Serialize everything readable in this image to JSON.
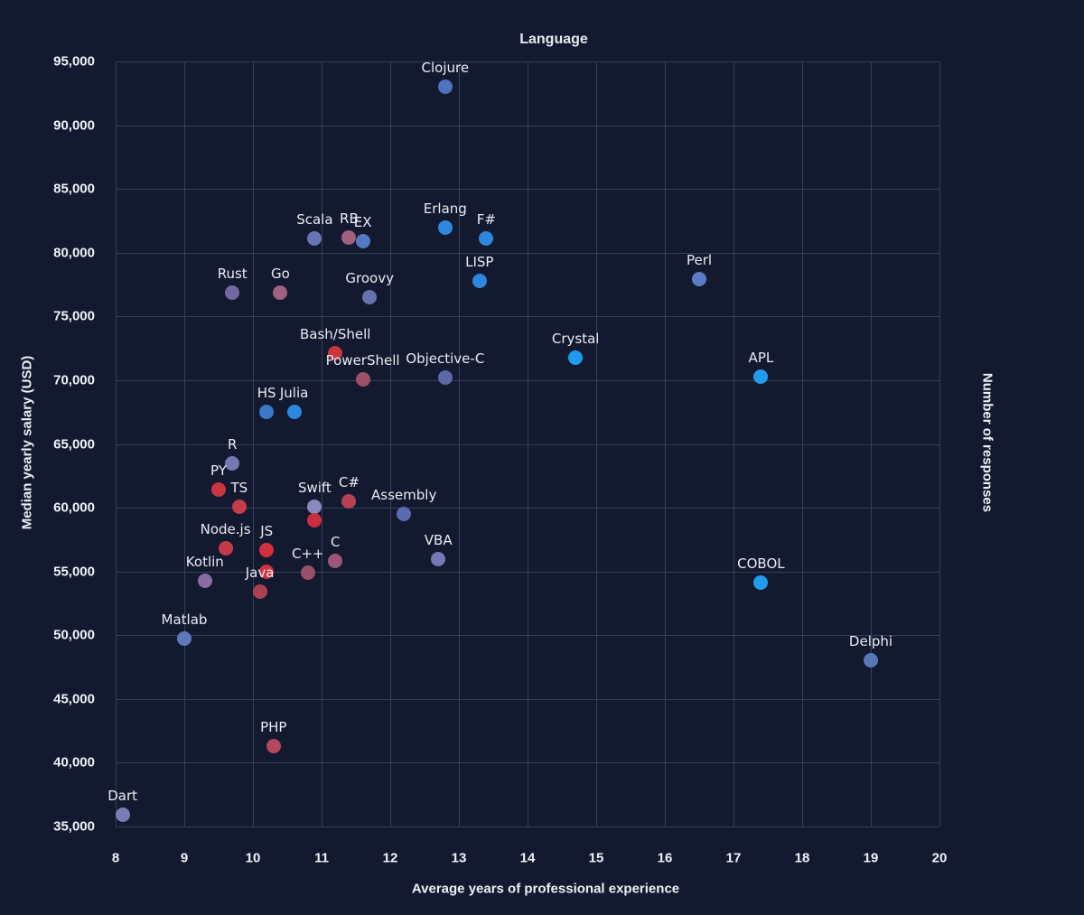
{
  "title": "Language",
  "colors": {
    "background": "#131a30",
    "grid": "#343d5b",
    "text": "#eef0f6"
  },
  "chart_data": {
    "type": "scatter",
    "title": "Language",
    "xlabel": "Average years of professional experience",
    "ylabel": "Median yearly salary (USD)",
    "right_label": "Number of responses",
    "xlim": [
      8,
      20
    ],
    "ylim": [
      35000,
      95000
    ],
    "x_ticks": [
      8,
      9,
      10,
      11,
      12,
      13,
      14,
      15,
      16,
      17,
      18,
      19,
      20
    ],
    "y_ticks": [
      35000,
      40000,
      45000,
      50000,
      55000,
      60000,
      65000,
      70000,
      75000,
      80000,
      85000,
      90000,
      95000
    ],
    "grid": true,
    "color_meaning": "number of responses (red = many, blue = few)",
    "points": [
      {
        "label": "Clojure",
        "x": 12.8,
        "y": 93000,
        "color": "#4f72bd"
      },
      {
        "label": "Erlang",
        "x": 12.8,
        "y": 82000,
        "color": "#2f86dd"
      },
      {
        "label": "F#",
        "x": 13.4,
        "y": 81100,
        "color": "#2f86dd"
      },
      {
        "label": "Scala",
        "x": 10.9,
        "y": 81100,
        "color": "#6675b4"
      },
      {
        "label": "RB",
        "x": 11.4,
        "y": 81200,
        "color": "#a25f7e"
      },
      {
        "label": "EX",
        "x": 11.6,
        "y": 80900,
        "color": "#5478c4"
      },
      {
        "label": "LISP",
        "x": 13.3,
        "y": 77800,
        "color": "#2f86dd"
      },
      {
        "label": "Perl",
        "x": 16.5,
        "y": 77900,
        "color": "#5c7dc5"
      },
      {
        "label": "Rust",
        "x": 9.7,
        "y": 76900,
        "color": "#75689f"
      },
      {
        "label": "Go",
        "x": 10.4,
        "y": 76900,
        "color": "#a26082"
      },
      {
        "label": "Groovy",
        "x": 11.7,
        "y": 76500,
        "color": "#6671b0"
      },
      {
        "label": "Bash/Shell",
        "x": 11.2,
        "y": 72100,
        "color": "#c8353f"
      },
      {
        "label": "Crystal",
        "x": 14.7,
        "y": 71800,
        "color": "#219bf0"
      },
      {
        "label": "APL",
        "x": 17.4,
        "y": 70300,
        "color": "#219bf0"
      },
      {
        "label": "PowerShell",
        "x": 11.6,
        "y": 70100,
        "color": "#9d5068"
      },
      {
        "label": "Objective-C",
        "x": 12.8,
        "y": 70200,
        "color": "#5c69a8"
      },
      {
        "label": "HS",
        "x": 10.2,
        "y": 67500,
        "color": "#3b78c8"
      },
      {
        "label": "Julia",
        "x": 10.6,
        "y": 67500,
        "color": "#2f86dd"
      },
      {
        "label": "R",
        "x": 9.7,
        "y": 63500,
        "color": "#7478b4"
      },
      {
        "label": "PY",
        "x": 9.5,
        "y": 61400,
        "color": "#c93642"
      },
      {
        "label": "TS",
        "x": 9.8,
        "y": 60100,
        "color": "#c23c4a"
      },
      {
        "label": "Swift",
        "x": 10.9,
        "y": 60100,
        "color": "#8a89bf"
      },
      {
        "label": "C#",
        "x": 11.4,
        "y": 60500,
        "color": "#b84052"
      },
      {
        "label": "",
        "x": 10.9,
        "y": 59000,
        "color": "#ca2e3e"
      },
      {
        "label": "Assembly",
        "x": 12.2,
        "y": 59500,
        "color": "#5b6bb0"
      },
      {
        "label": "Node.js",
        "x": 9.6,
        "y": 56800,
        "color": "#c33b48"
      },
      {
        "label": "JS",
        "x": 10.2,
        "y": 56700,
        "color": "#d3303d"
      },
      {
        "label": "",
        "x": 10.2,
        "y": 55000,
        "color": "#cf3340"
      },
      {
        "label": "VBA",
        "x": 12.7,
        "y": 56000,
        "color": "#7478b8"
      },
      {
        "label": "Kotlin",
        "x": 9.3,
        "y": 54300,
        "color": "#8a6ba4"
      },
      {
        "label": "C++",
        "x": 10.8,
        "y": 54900,
        "color": "#9b4f66"
      },
      {
        "label": "C",
        "x": 11.2,
        "y": 55800,
        "color": "#9d5679"
      },
      {
        "label": "Java",
        "x": 10.1,
        "y": 53400,
        "color": "#ab4150"
      },
      {
        "label": "COBOL",
        "x": 17.4,
        "y": 54100,
        "color": "#219bf0"
      },
      {
        "label": "Matlab",
        "x": 9.0,
        "y": 49700,
        "color": "#5f78bb"
      },
      {
        "label": "Delphi",
        "x": 19.0,
        "y": 48000,
        "color": "#5a76ba"
      },
      {
        "label": "PHP",
        "x": 10.3,
        "y": 41300,
        "color": "#b5475e"
      },
      {
        "label": "Dart",
        "x": 8.1,
        "y": 35900,
        "color": "#7a7cb5"
      }
    ]
  }
}
